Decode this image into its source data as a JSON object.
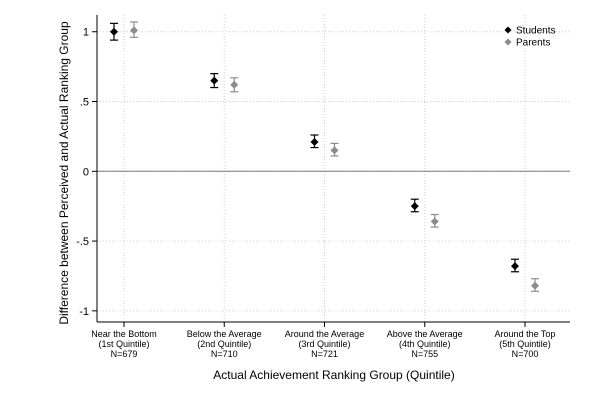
{
  "chart_data": {
    "type": "scatter",
    "title": "",
    "xlabel": "Actual Achievement Ranking Group (Quintile)",
    "ylabel": "Difference between Perceived and Actual Ranking Group",
    "ylim": [
      -1.08,
      1.12
    ],
    "yticks": [
      {
        "value": 1,
        "label": "1"
      },
      {
        "value": 0.5,
        "label": ".5"
      },
      {
        "value": 0,
        "label": "0"
      },
      {
        "value": -0.5,
        "label": "-.5"
      },
      {
        "value": -1,
        "label": "-1"
      }
    ],
    "grid": true,
    "reference_line_y": 0,
    "legend_position": "top-right",
    "categories": [
      {
        "lines": [
          "Near the Bottom",
          "(1st Quintile)",
          "N=679"
        ]
      },
      {
        "lines": [
          "Below the Average",
          "(2nd Quintile)",
          "N=710"
        ]
      },
      {
        "lines": [
          "Around the Average",
          "(3rd Quintile)",
          "N=721"
        ]
      },
      {
        "lines": [
          "Above the Average",
          "(4th Quintile)",
          "N=755"
        ]
      },
      {
        "lines": [
          "Around the Top",
          "(5th Quintile)",
          "N=700"
        ]
      }
    ],
    "series": [
      {
        "name": "Students",
        "color": "#000000",
        "values": [
          1.0,
          0.65,
          0.21,
          -0.25,
          -0.68
        ],
        "ci_low": [
          0.94,
          0.6,
          0.17,
          -0.29,
          -0.72
        ],
        "ci_high": [
          1.06,
          0.7,
          0.26,
          -0.2,
          -0.63
        ]
      },
      {
        "name": "Parents",
        "color": "#8c8c8c",
        "values": [
          1.01,
          0.62,
          0.15,
          -0.36,
          -0.82
        ],
        "ci_low": [
          0.96,
          0.57,
          0.11,
          -0.4,
          -0.86
        ],
        "ci_high": [
          1.07,
          0.67,
          0.2,
          -0.31,
          -0.77
        ]
      }
    ]
  }
}
